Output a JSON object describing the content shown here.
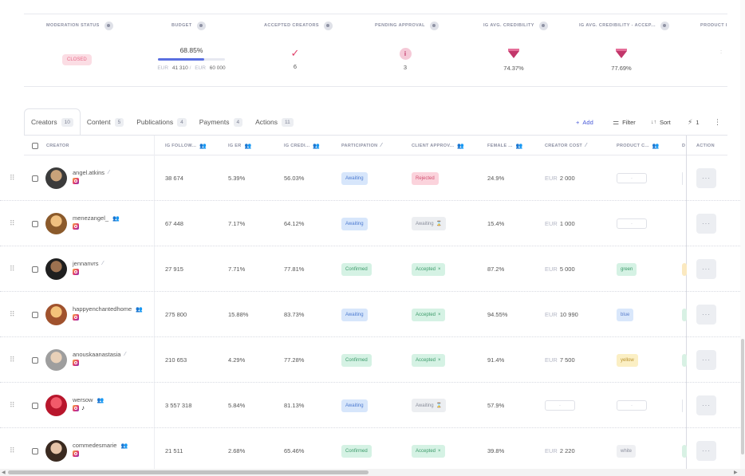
{
  "summary": {
    "columns": [
      {
        "label": "MODERATION STATUS"
      },
      {
        "label": "BUDGET"
      },
      {
        "label": "ACCEPTED CREATORS"
      },
      {
        "label": "PENDING APPROVAL"
      },
      {
        "label": "IG AVG. CREDIBILITY"
      },
      {
        "label": "IG AVG. CREDIBILITY - ACCEP..."
      },
      {
        "label": "PRODUCT I"
      }
    ],
    "moderation_status": "CLOSED",
    "budget_percent": "68.85%",
    "budget_fraction": 0.6885,
    "budget_spent_currency": "EUR",
    "budget_spent": "41 310",
    "budget_separator": "/",
    "budget_total_currency": "EUR",
    "budget_total": "60 000",
    "accepted_creators": "6",
    "pending_approval": "3",
    "ig_avg_credibility": "74.37%",
    "ig_avg_credibility_accepted": "77.69%",
    "product_cut": ":"
  },
  "tabs": [
    {
      "label": "Creators",
      "count": "10"
    },
    {
      "label": "Content",
      "count": "5"
    },
    {
      "label": "Publications",
      "count": "4"
    },
    {
      "label": "Payments",
      "count": "4"
    },
    {
      "label": "Actions",
      "count": "11"
    }
  ],
  "toolbar": {
    "add_label": "Add",
    "filter_label": "Filter",
    "sort_label": "Sort",
    "bolt_count": "1"
  },
  "columns": [
    "CREATOR",
    "IG FOLLOW...",
    "IG ER",
    "IG CREDI...",
    "PARTICIPATION",
    "CLIENT APPROV...",
    "FEMALE ...",
    "CREATOR COST",
    "PRODUCT C...",
    "D",
    "ACTION"
  ],
  "rows": [
    {
      "handle": "angel.atkins",
      "handle_icon": "wand",
      "tiktok": false,
      "followers": "38 674",
      "er": "5.39%",
      "credibility": "56.03%",
      "participation": "Awaiting",
      "client_approval": "Rejected",
      "approval_icon": "",
      "female": "24.9%",
      "cost_currency": "EUR",
      "cost": "2 000",
      "product": "",
      "peek": "line"
    },
    {
      "handle": "menezangel_",
      "handle_icon": "people",
      "tiktok": false,
      "followers": "67 448",
      "er": "7.17%",
      "credibility": "64.12%",
      "participation": "Awaiting",
      "client_approval": "Awaiting",
      "approval_icon": "⌛",
      "female": "15.4%",
      "cost_currency": "EUR",
      "cost": "1 000",
      "product": "",
      "peek": "none"
    },
    {
      "handle": "jennanvrs",
      "handle_icon": "wand",
      "tiktok": false,
      "followers": "27 915",
      "er": "7.71%",
      "credibility": "77.81%",
      "participation": "Confirmed",
      "client_approval": "Accepted",
      "approval_icon": "×",
      "female": "87.2%",
      "cost_currency": "EUR",
      "cost": "5 000",
      "product": "green",
      "peek": "yellow"
    },
    {
      "handle": "happyenchantedhome",
      "handle_icon": "people",
      "tiktok": false,
      "followers": "275 800",
      "er": "15.88%",
      "credibility": "83.73%",
      "participation": "Awaiting",
      "client_approval": "Accepted",
      "approval_icon": "×",
      "female": "94.55%",
      "cost_currency": "EUR",
      "cost": "10 990",
      "product": "blue",
      "peek": "green"
    },
    {
      "handle": "anouskaanastasia",
      "handle_icon": "wand",
      "tiktok": false,
      "followers": "210 653",
      "er": "4.29%",
      "credibility": "77.28%",
      "participation": "Confirmed",
      "client_approval": "Accepted",
      "approval_icon": "×",
      "female": "91.4%",
      "cost_currency": "EUR",
      "cost": "7 500",
      "product": "yellow",
      "peek": "green"
    },
    {
      "handle": "wersow",
      "handle_icon": "people",
      "tiktok": true,
      "followers": "3 557 318",
      "er": "5.84%",
      "credibility": "81.13%",
      "participation": "Awaiting",
      "client_approval": "Awaiting",
      "approval_icon": "⌛",
      "female": "57.9%",
      "cost_currency": "",
      "cost": "",
      "product": "",
      "peek": "line"
    },
    {
      "handle": "commedesmarie",
      "handle_icon": "people",
      "tiktok": false,
      "followers": "21 511",
      "er": "2.68%",
      "credibility": "65.46%",
      "participation": "Confirmed",
      "client_approval": "Accepted",
      "approval_icon": "×",
      "female": "39.8%",
      "cost_currency": "EUR",
      "cost": "2 220",
      "product": "white",
      "peek": "green"
    }
  ],
  "icons": {
    "drag": "drag-handle-icon",
    "more": "more-icon",
    "instagram": "instagram-icon",
    "tiktok": "tiktok-icon",
    "wand": "magic-wand-icon",
    "people": "people-icon"
  },
  "colors": {
    "accent": "#4a5bd8",
    "rejected": "#d15070",
    "accepted": "#3c9a6a",
    "awaiting": "#4c7ad0",
    "credibility_gem": "#c2366a"
  },
  "action_glyph": "···"
}
